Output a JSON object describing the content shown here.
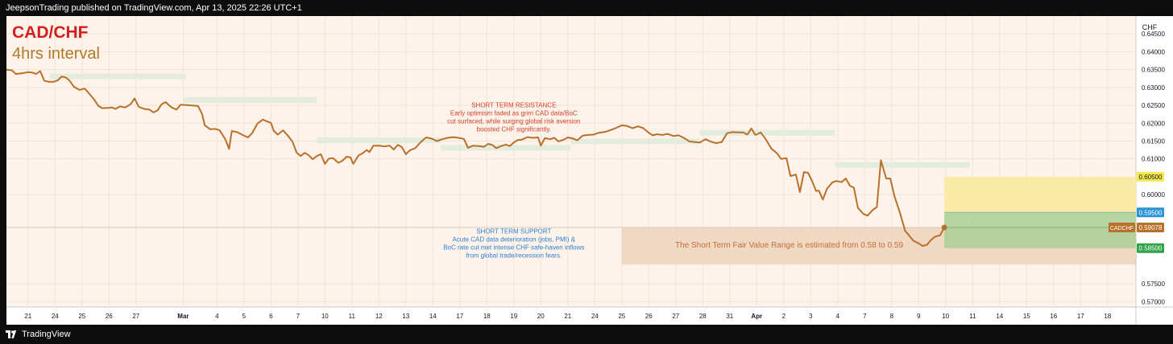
{
  "header": {
    "publisher_line": "JeepsonTrading published on TradingView.com, Apr 13, 2025 22:26 UTC+1"
  },
  "footer": {
    "brand": "TradingView",
    "logo_icon": "tradingview-logo-icon"
  },
  "colors": {
    "price_line": "#b8702a",
    "title_red": "#d41f1f",
    "subtitle_brown": "#b07a2a",
    "resistance_text": "#d6402b",
    "support_text": "#2d7fd6",
    "fv_text": "#c0703a",
    "zone_rect": "#e4ecdf",
    "fair_value_box": "#eccfb6",
    "target_zone": "#fbe9a6",
    "stop_zone": "#a9cf96",
    "label_yellow": "#f3e84c",
    "label_blue": "#2a93d5",
    "label_green": "#2fa24a",
    "label_brown": "#b8702a"
  },
  "chart_data": {
    "type": "line",
    "symbol": "CAD/CHF",
    "interval": "4hrs interval",
    "currency": "CHF",
    "x_unit": "trading days from Feb 21, 2025 (0 = Feb 21)",
    "x_tick_labels": [
      {
        "x": 0,
        "label": "21"
      },
      {
        "x": 1,
        "label": "24"
      },
      {
        "x": 2,
        "label": "25"
      },
      {
        "x": 3,
        "label": "26"
      },
      {
        "x": 4,
        "label": "27"
      },
      {
        "x": 5.75,
        "label": "Mar"
      },
      {
        "x": 7,
        "label": "4"
      },
      {
        "x": 8,
        "label": "5"
      },
      {
        "x": 9,
        "label": "6"
      },
      {
        "x": 10,
        "label": "7"
      },
      {
        "x": 11,
        "label": "10"
      },
      {
        "x": 12,
        "label": "11"
      },
      {
        "x": 13,
        "label": "12"
      },
      {
        "x": 14,
        "label": "13"
      },
      {
        "x": 15,
        "label": "14"
      },
      {
        "x": 16,
        "label": "17"
      },
      {
        "x": 17,
        "label": "18"
      },
      {
        "x": 18,
        "label": "19"
      },
      {
        "x": 19,
        "label": "20"
      },
      {
        "x": 20,
        "label": "21"
      },
      {
        "x": 21,
        "label": "24"
      },
      {
        "x": 22,
        "label": "25"
      },
      {
        "x": 23,
        "label": "26"
      },
      {
        "x": 24,
        "label": "27"
      },
      {
        "x": 25,
        "label": "28"
      },
      {
        "x": 26,
        "label": "31"
      },
      {
        "x": 27,
        "label": "Apr"
      },
      {
        "x": 28,
        "label": "2"
      },
      {
        "x": 29,
        "label": "3"
      },
      {
        "x": 30,
        "label": "4"
      },
      {
        "x": 31,
        "label": "7"
      },
      {
        "x": 32,
        "label": "8"
      },
      {
        "x": 33,
        "label": "9"
      },
      {
        "x": 34,
        "label": "10"
      },
      {
        "x": 35,
        "label": "11"
      },
      {
        "x": 36,
        "label": "14"
      },
      {
        "x": 37,
        "label": "15"
      },
      {
        "x": 38,
        "label": "16"
      },
      {
        "x": 39,
        "label": "17"
      },
      {
        "x": 40,
        "label": "18"
      }
    ],
    "y_ticks": [
      "0.64500",
      "0.64000",
      "0.63500",
      "0.63000",
      "0.62500",
      "0.62000",
      "0.61500",
      "0.61000",
      "0.60000",
      "0.57500",
      "0.57000"
    ],
    "ylim": [
      0.5685,
      0.65
    ],
    "xlim": [
      -0.8,
      41.05
    ],
    "series": [
      {
        "name": "CADCHF",
        "points": [
          [
            -0.8,
            0.635
          ],
          [
            -0.6,
            0.6348
          ],
          [
            -0.45,
            0.6338
          ],
          [
            -0.2,
            0.634
          ],
          [
            0.0,
            0.6343
          ],
          [
            0.15,
            0.6342
          ],
          [
            0.3,
            0.6338
          ],
          [
            0.45,
            0.6346
          ],
          [
            0.6,
            0.6319
          ],
          [
            0.75,
            0.6316
          ],
          [
            0.95,
            0.6316
          ],
          [
            1.1,
            0.632
          ],
          [
            1.25,
            0.6331
          ],
          [
            1.4,
            0.6328
          ],
          [
            1.55,
            0.6318
          ],
          [
            1.7,
            0.6302
          ],
          [
            1.9,
            0.6293
          ],
          [
            2.1,
            0.6297
          ],
          [
            2.25,
            0.6284
          ],
          [
            2.45,
            0.6266
          ],
          [
            2.6,
            0.6249
          ],
          [
            2.75,
            0.6242
          ],
          [
            2.95,
            0.6243
          ],
          [
            3.1,
            0.6244
          ],
          [
            3.25,
            0.624
          ],
          [
            3.4,
            0.6247
          ],
          [
            3.6,
            0.6244
          ],
          [
            3.8,
            0.6253
          ],
          [
            3.95,
            0.6269
          ],
          [
            4.1,
            0.6246
          ],
          [
            4.3,
            0.624
          ],
          [
            4.5,
            0.6238
          ],
          [
            4.65,
            0.623
          ],
          [
            4.8,
            0.6236
          ],
          [
            4.95,
            0.6253
          ],
          [
            5.1,
            0.6259
          ],
          [
            5.3,
            0.6245
          ],
          [
            5.5,
            0.6238
          ],
          [
            5.65,
            0.6252
          ],
          [
            6.0,
            0.625
          ],
          [
            6.3,
            0.6248
          ],
          [
            6.45,
            0.6225
          ],
          [
            6.55,
            0.6194
          ],
          [
            6.75,
            0.6183
          ],
          [
            6.95,
            0.6184
          ],
          [
            7.1,
            0.618
          ],
          [
            7.3,
            0.6156
          ],
          [
            7.45,
            0.6128
          ],
          [
            7.55,
            0.6178
          ],
          [
            7.75,
            0.6175
          ],
          [
            7.95,
            0.6167
          ],
          [
            8.15,
            0.616
          ],
          [
            8.3,
            0.6172
          ],
          [
            8.5,
            0.6199
          ],
          [
            8.7,
            0.621
          ],
          [
            8.85,
            0.6205
          ],
          [
            9.0,
            0.6201
          ],
          [
            9.1,
            0.6179
          ],
          [
            9.25,
            0.6168
          ],
          [
            9.45,
            0.618
          ],
          [
            9.65,
            0.6163
          ],
          [
            9.8,
            0.6148
          ],
          [
            9.95,
            0.6118
          ],
          [
            10.1,
            0.6108
          ],
          [
            10.25,
            0.6117
          ],
          [
            10.4,
            0.611
          ],
          [
            10.55,
            0.6099
          ],
          [
            10.7,
            0.6108
          ],
          [
            10.85,
            0.6113
          ],
          [
            11.0,
            0.6086
          ],
          [
            11.15,
            0.6101
          ],
          [
            11.3,
            0.6102
          ],
          [
            11.5,
            0.6089
          ],
          [
            11.65,
            0.6095
          ],
          [
            11.8,
            0.6106
          ],
          [
            11.95,
            0.6104
          ],
          [
            12.05,
            0.6086
          ],
          [
            12.25,
            0.611
          ],
          [
            12.4,
            0.6116
          ],
          [
            12.55,
            0.6125
          ],
          [
            12.65,
            0.6119
          ],
          [
            12.8,
            0.6137
          ],
          [
            13.0,
            0.6137
          ],
          [
            13.2,
            0.6135
          ],
          [
            13.4,
            0.6137
          ],
          [
            13.55,
            0.6126
          ],
          [
            13.7,
            0.6139
          ],
          [
            13.85,
            0.6133
          ],
          [
            14.0,
            0.6113
          ],
          [
            14.15,
            0.6124
          ],
          [
            14.35,
            0.613
          ],
          [
            14.55,
            0.6147
          ],
          [
            14.75,
            0.616
          ],
          [
            14.95,
            0.6157
          ],
          [
            15.15,
            0.615
          ],
          [
            15.35,
            0.6155
          ],
          [
            15.55,
            0.6159
          ],
          [
            15.75,
            0.6161
          ],
          [
            15.95,
            0.6159
          ],
          [
            16.15,
            0.6156
          ],
          [
            16.3,
            0.6131
          ],
          [
            16.5,
            0.6137
          ],
          [
            16.7,
            0.6136
          ],
          [
            16.9,
            0.6134
          ],
          [
            17.05,
            0.6142
          ],
          [
            17.2,
            0.6139
          ],
          [
            17.35,
            0.613
          ],
          [
            17.5,
            0.6135
          ],
          [
            17.7,
            0.614
          ],
          [
            17.85,
            0.6136
          ],
          [
            18.0,
            0.6146
          ],
          [
            18.15,
            0.6153
          ],
          [
            18.3,
            0.6154
          ],
          [
            18.5,
            0.6161
          ],
          [
            18.7,
            0.6159
          ],
          [
            18.9,
            0.616
          ],
          [
            19.0,
            0.6137
          ],
          [
            19.15,
            0.6158
          ],
          [
            19.35,
            0.6155
          ],
          [
            19.5,
            0.6159
          ],
          [
            19.65,
            0.6149
          ],
          [
            19.85,
            0.6154
          ],
          [
            20.0,
            0.616
          ],
          [
            20.2,
            0.6157
          ],
          [
            20.35,
            0.6152
          ],
          [
            20.55,
            0.6165
          ],
          [
            20.75,
            0.6167
          ],
          [
            20.95,
            0.6168
          ],
          [
            21.15,
            0.6173
          ],
          [
            21.4,
            0.6176
          ],
          [
            21.6,
            0.6181
          ],
          [
            21.8,
            0.6187
          ],
          [
            22.0,
            0.6194
          ],
          [
            22.2,
            0.6192
          ],
          [
            22.4,
            0.6186
          ],
          [
            22.6,
            0.6191
          ],
          [
            22.8,
            0.6186
          ],
          [
            23.0,
            0.6173
          ],
          [
            23.15,
            0.6166
          ],
          [
            23.3,
            0.6169
          ],
          [
            23.5,
            0.6167
          ],
          [
            23.7,
            0.617
          ],
          [
            23.9,
            0.6164
          ],
          [
            24.1,
            0.6166
          ],
          [
            24.3,
            0.6159
          ],
          [
            24.5,
            0.6149
          ],
          [
            24.7,
            0.6147
          ],
          [
            24.9,
            0.6146
          ],
          [
            25.1,
            0.6155
          ],
          [
            25.3,
            0.6148
          ],
          [
            25.5,
            0.6144
          ],
          [
            25.7,
            0.6147
          ],
          [
            25.9,
            0.6172
          ],
          [
            26.1,
            0.6175
          ],
          [
            26.3,
            0.6174
          ],
          [
            26.5,
            0.6174
          ],
          [
            26.65,
            0.6168
          ],
          [
            26.8,
            0.6185
          ],
          [
            26.95,
            0.6167
          ],
          [
            27.15,
            0.6174
          ],
          [
            27.35,
            0.6153
          ],
          [
            27.55,
            0.6128
          ],
          [
            27.75,
            0.6116
          ],
          [
            27.9,
            0.61
          ],
          [
            28.1,
            0.6102
          ],
          [
            28.25,
            0.6052
          ],
          [
            28.45,
            0.6056
          ],
          [
            28.6,
            0.6007
          ],
          [
            28.75,
            0.6063
          ],
          [
            28.9,
            0.6061
          ],
          [
            29.05,
            0.6038
          ],
          [
            29.2,
            0.601
          ],
          [
            29.3,
            0.6011
          ],
          [
            29.45,
            0.5986
          ],
          [
            29.6,
            0.6016
          ],
          [
            29.8,
            0.6034
          ],
          [
            29.95,
            0.6038
          ],
          [
            30.15,
            0.6035
          ],
          [
            30.3,
            0.6045
          ],
          [
            30.45,
            0.6025
          ],
          [
            30.6,
            0.6019
          ],
          [
            30.75,
            0.5963
          ],
          [
            30.95,
            0.5946
          ],
          [
            31.1,
            0.5941
          ],
          [
            31.3,
            0.5957
          ],
          [
            31.45,
            0.5965
          ],
          [
            31.6,
            0.6096
          ],
          [
            31.8,
            0.6045
          ],
          [
            31.95,
            0.6045
          ],
          [
            32.1,
            0.5996
          ],
          [
            32.3,
            0.595
          ],
          [
            32.5,
            0.5898
          ],
          [
            32.65,
            0.5885
          ],
          [
            32.8,
            0.5871
          ],
          [
            33.0,
            0.5863
          ],
          [
            33.15,
            0.5856
          ],
          [
            33.3,
            0.5859
          ],
          [
            33.45,
            0.5872
          ],
          [
            33.6,
            0.5882
          ],
          [
            33.8,
            0.5886
          ],
          [
            33.95,
            0.5908
          ]
        ]
      }
    ],
    "zones": [
      {
        "x0": 0.8,
        "x1": 5.85,
        "y": 0.6331
      },
      {
        "x0": 5.75,
        "x1": 10.7,
        "y": 0.6265
      },
      {
        "x0": 10.7,
        "x1": 15.3,
        "y": 0.6152
      },
      {
        "x0": 15.3,
        "x1": 20.1,
        "y": 0.6131
      },
      {
        "x0": 20.1,
        "x1": 24.9,
        "y": 0.6149
      },
      {
        "x0": 24.9,
        "x1": 29.9,
        "y": 0.6173
      },
      {
        "x0": 29.9,
        "x1": 34.9,
        "y": 0.6083
      }
    ],
    "fair_value_box": {
      "x0": 22.0,
      "x1": 41.05,
      "y_top": 0.5908,
      "y_bottom": 0.5804
    },
    "position": {
      "x0": 33.95,
      "x1": 41.05,
      "target": 0.605,
      "entry": 0.595,
      "stop": 0.585,
      "entry_line": 0.5908
    },
    "price_labels": [
      {
        "value": "0.60500",
        "price": 0.605,
        "color": "yellow"
      },
      {
        "value": "0.59500",
        "price": 0.595,
        "color": "blue"
      },
      {
        "value": "0.59078",
        "price": 0.59078,
        "color": "brown",
        "tag": "CADCHF"
      },
      {
        "value": "0.58500",
        "price": 0.585,
        "color": "green"
      }
    ],
    "annotations": {
      "resistance": {
        "x": 18.0,
        "y": 0.6245,
        "lines": [
          "SHORT TERM RESISTANCE",
          "Early optimism faded as grim CAD data/BoC",
          "cut surfaced, while surging global risk aversion",
          "boosted CHF significantly."
        ]
      },
      "support": {
        "x": 18.0,
        "y": 0.5891,
        "lines": [
          "SHORT TERM SUPPORT",
          "Acute CAD data deterioration (jobs, PMI) &",
          "BoC rate cut met intense CHF safe-haven inflows",
          "from global trade/recession fears."
        ]
      },
      "fair_value": {
        "x": 28.2,
        "y": 0.5852,
        "text": "The Short Term Fair Value Range is estimated from 0.58 to 0.59"
      }
    }
  }
}
